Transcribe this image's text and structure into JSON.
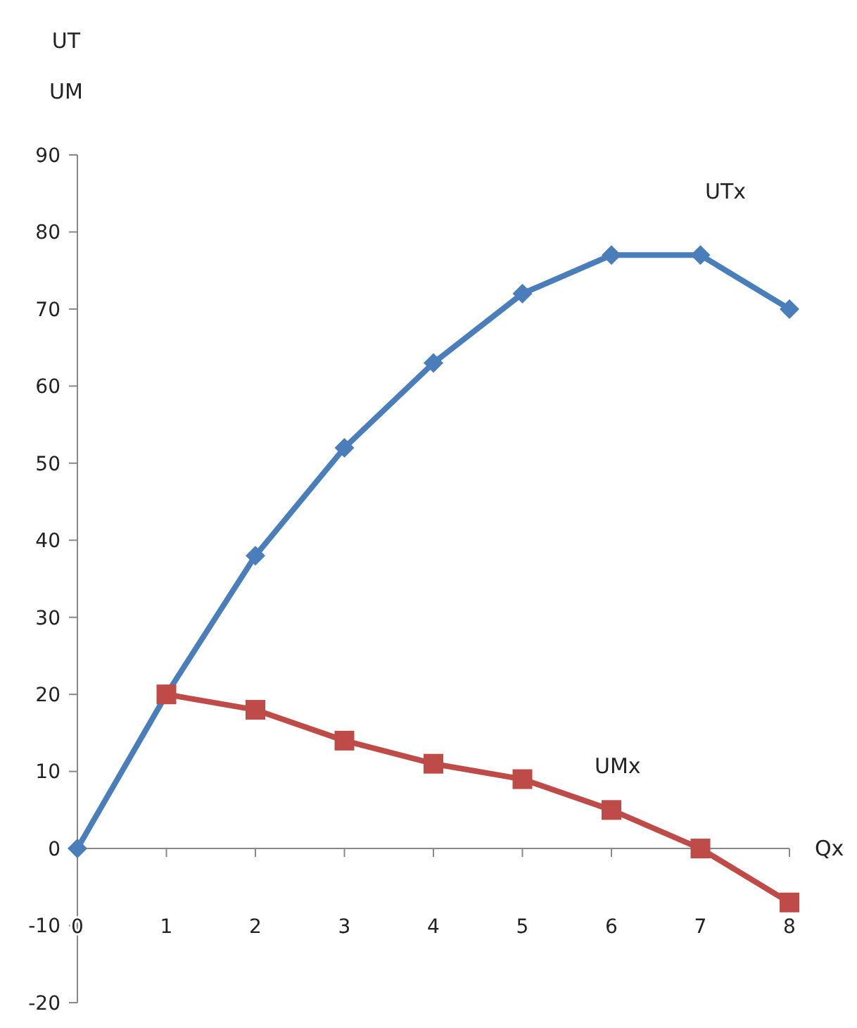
{
  "chart_data": {
    "type": "line",
    "ylabel": "UT\nUM",
    "xlabel": "Qx",
    "x": [
      0,
      1,
      2,
      3,
      4,
      5,
      6,
      7,
      8
    ],
    "xlim": [
      0,
      8
    ],
    "xticks": [
      0,
      1,
      2,
      3,
      4,
      5,
      6,
      7,
      8
    ],
    "ylim": [
      -20,
      90
    ],
    "yticks": [
      -20,
      -10,
      0,
      10,
      20,
      30,
      40,
      50,
      60,
      70,
      80,
      90
    ],
    "line_style": "solid",
    "series": [
      {
        "name": "UTx",
        "color": "#4a7ebb",
        "marker": "diamond",
        "values": [
          0,
          20,
          38,
          52,
          63,
          72,
          77,
          77,
          70
        ]
      },
      {
        "name": "UMx",
        "color": "#be4b48",
        "marker": "square",
        "values": [
          null,
          20,
          18,
          14,
          11,
          9,
          5,
          0,
          -7
        ]
      }
    ]
  }
}
